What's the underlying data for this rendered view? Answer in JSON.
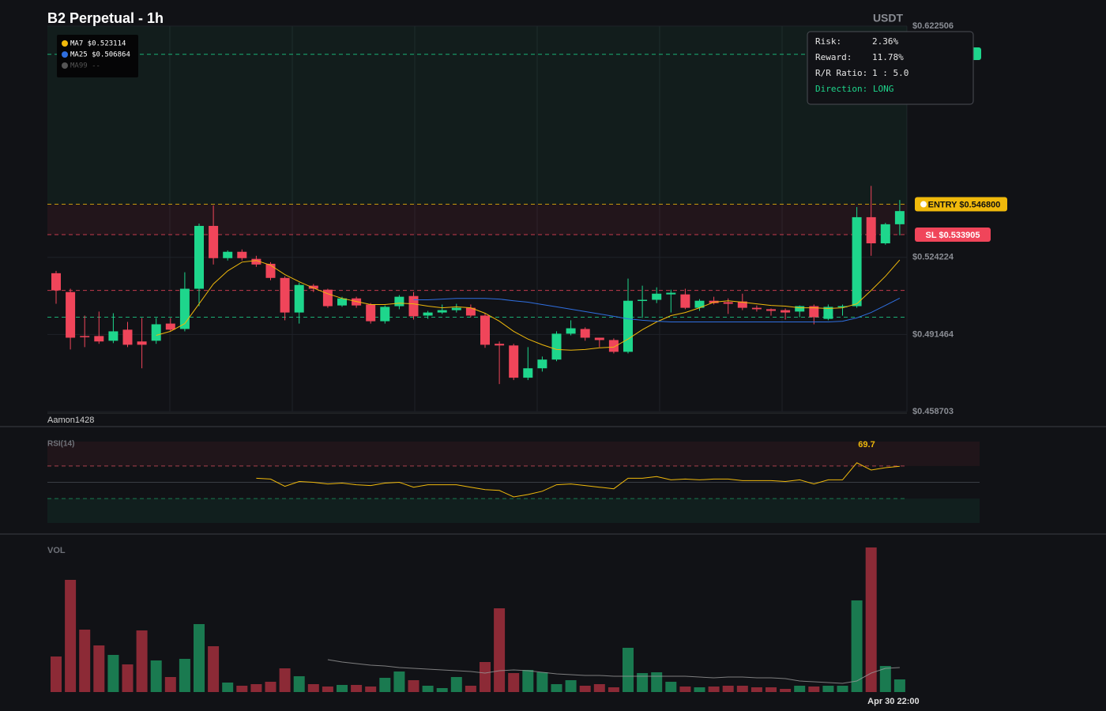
{
  "chart_data": {
    "type": "candlestick",
    "title": "B2 Perpetual - 1h",
    "currency": "USDT",
    "watermark": "Aamon1428",
    "categories": [
      null,
      null,
      null,
      null,
      null,
      null,
      null,
      null,
      null,
      null,
      null,
      null,
      null,
      null,
      null,
      null,
      null,
      null,
      null,
      null,
      null,
      null,
      null,
      null,
      null,
      null,
      null,
      null,
      null,
      null,
      null,
      null,
      null,
      null,
      null,
      null,
      null,
      null,
      null,
      null,
      null,
      null,
      null,
      null,
      null,
      null,
      null,
      null,
      null,
      null,
      null,
      null,
      null,
      null,
      null,
      null,
      null,
      null,
      null,
      "Apr 30 22:00"
    ],
    "open": [
      0.5175,
      0.5095,
      0.4908,
      0.4908,
      0.4888,
      0.4935,
      0.4885,
      0.4888,
      0.4961,
      0.4938,
      0.5109,
      0.5376,
      0.5239,
      0.5266,
      0.5236,
      0.5215,
      0.5155,
      0.5008,
      0.5122,
      0.5105,
      0.5038,
      0.5068,
      0.5042,
      0.4971,
      0.5035,
      0.5078,
      0.4995,
      0.5008,
      0.5018,
      0.5028,
      0.4995,
      0.4875,
      0.4868,
      0.4731,
      0.4771,
      0.4808,
      0.4918,
      0.4938,
      0.4901,
      0.4891,
      0.4841,
      0.5058,
      0.5062,
      0.5085,
      0.5085,
      0.5028,
      0.5058,
      0.5052,
      0.5055,
      0.5028,
      0.5022,
      0.5018,
      0.5012,
      0.5035,
      0.4981,
      0.5032,
      0.5035,
      0.5413,
      0.5302,
      0.5383
    ],
    "high": [
      0.5185,
      0.5109,
      0.4995,
      0.5012,
      0.5005,
      0.4968,
      0.4985,
      0.4985,
      0.4985,
      0.5179,
      0.5386,
      0.5463,
      0.5272,
      0.5276,
      0.5249,
      0.5222,
      0.5162,
      0.5135,
      0.5129,
      0.5109,
      0.5075,
      0.5075,
      0.5048,
      0.5038,
      0.5082,
      0.5095,
      0.5015,
      0.5042,
      0.5045,
      0.5042,
      0.5005,
      0.4885,
      0.4875,
      0.4861,
      0.4821,
      0.4928,
      0.4975,
      0.4945,
      0.4901,
      0.4898,
      0.5152,
      0.5122,
      0.5115,
      0.5105,
      0.5109,
      0.5065,
      0.5075,
      0.5068,
      0.5088,
      0.5038,
      0.5025,
      0.5025,
      0.5038,
      0.5042,
      0.5042,
      0.5042,
      0.5456,
      0.5546,
      0.5389,
      0.5486
    ],
    "low": [
      0.5045,
      0.4851,
      0.4861,
      0.4875,
      0.4878,
      0.4861,
      0.4771,
      0.4875,
      0.4928,
      0.4928,
      0.5035,
      0.5212,
      0.5229,
      0.5229,
      0.5202,
      0.5145,
      0.4975,
      0.4961,
      0.5095,
      0.5028,
      0.5032,
      0.5028,
      0.4961,
      0.4961,
      0.5022,
      0.4978,
      0.4981,
      0.5002,
      0.5008,
      0.4988,
      0.4858,
      0.4704,
      0.4721,
      0.4721,
      0.4757,
      0.4801,
      0.4911,
      0.4888,
      0.4861,
      0.4834,
      0.4834,
      0.4985,
      0.5048,
      0.5008,
      0.5022,
      0.5015,
      0.5042,
      0.5002,
      0.5018,
      0.5012,
      0.4995,
      0.4978,
      0.4988,
      0.4958,
      0.4975,
      0.4995,
      0.5028,
      0.5249,
      0.5296,
      0.5336
    ],
    "close": [
      0.5102,
      0.4901,
      0.4905,
      0.4885,
      0.4928,
      0.4871,
      0.4871,
      0.4958,
      0.4935,
      0.5109,
      0.5376,
      0.5239,
      0.5266,
      0.5239,
      0.5212,
      0.5155,
      0.5008,
      0.5125,
      0.5109,
      0.5035,
      0.5068,
      0.5038,
      0.4971,
      0.5032,
      0.5075,
      0.4992,
      0.5008,
      0.5018,
      0.5028,
      0.4995,
      0.4871,
      0.4868,
      0.4731,
      0.4771,
      0.4808,
      0.4918,
      0.4941,
      0.4901,
      0.4891,
      0.4841,
      0.5058,
      0.5062,
      0.5088,
      0.5092,
      0.5028,
      0.5058,
      0.5048,
      0.5045,
      0.5028,
      0.5022,
      0.5015,
      0.5008,
      0.5035,
      0.4988,
      0.5032,
      0.5035,
      0.5413,
      0.5302,
      0.5383,
      0.5439
    ],
    "up_color": "#1ed68c",
    "down_color": "#f0455a",
    "ylim": [
      0.458703,
      0.622506
    ],
    "yticks": [
      {
        "value": 0.458703,
        "label": "$0.458703"
      },
      {
        "value": 0.491464,
        "label": "$0.491464"
      },
      {
        "value": 0.524224,
        "label": "$0.524224"
      },
      {
        "value": 0.622506,
        "label": "$0.622506"
      }
    ],
    "ma": [
      {
        "legend_label": "MA7 $0.523114",
        "color": "#f0b90b",
        "values": [
          null,
          null,
          null,
          null,
          null,
          null,
          null,
          0.4911,
          0.4928,
          0.4961,
          0.5045,
          0.5129,
          0.5185,
          0.5222,
          0.5229,
          0.5209,
          0.5169,
          0.5139,
          0.5112,
          0.5088,
          0.5068,
          0.5055,
          0.5042,
          0.5042,
          0.5048,
          0.5045,
          0.5035,
          0.5028,
          0.5032,
          0.5028,
          0.5005,
          0.4971,
          0.4928,
          0.4895,
          0.4871,
          0.4851,
          0.4848,
          0.4851,
          0.4858,
          0.4861,
          0.4895,
          0.4935,
          0.4968,
          0.4995,
          0.5008,
          0.5028,
          0.5052,
          0.5058,
          0.5052,
          0.5045,
          0.5038,
          0.5035,
          0.5028,
          0.5028,
          0.5025,
          0.5028,
          0.5045,
          0.5102,
          0.5162,
          0.5231
        ]
      },
      {
        "legend_label": "MA25 $0.506864",
        "color": "#2f6fe0",
        "values": [
          null,
          null,
          null,
          null,
          null,
          null,
          null,
          null,
          null,
          null,
          null,
          null,
          null,
          null,
          null,
          null,
          null,
          null,
          null,
          null,
          null,
          null,
          null,
          null,
          null,
          0.5062,
          0.5062,
          0.5065,
          0.5068,
          0.5068,
          0.5068,
          0.5065,
          0.5058,
          0.5052,
          0.5042,
          0.5032,
          0.5022,
          0.5012,
          0.5002,
          0.4992,
          0.4981,
          0.4975,
          0.4971,
          0.4968,
          0.4968,
          0.4968,
          0.4968,
          0.4968,
          0.4968,
          0.4968,
          0.4968,
          0.4968,
          0.4968,
          0.4968,
          0.4968,
          0.4971,
          0.4985,
          0.5008,
          0.5038,
          0.5069
        ]
      },
      {
        "legend_label": "MA99 --",
        "color": "#555555"
      }
    ],
    "levels": [
      {
        "value": 0.6105,
        "color": "#1ed68c"
      },
      {
        "value": 0.5468,
        "color": "#f0b90b",
        "label": "ENTRY $0.546800"
      },
      {
        "value": 0.5339,
        "color": "#f0455a",
        "label": "SL $0.533905"
      },
      {
        "value": 0.5102,
        "color": "#f0455a"
      },
      {
        "value": 0.4988,
        "color": "#1ed68c"
      }
    ],
    "rsi": {
      "title": "RSI(14)",
      "color": "#f0b90b",
      "ylim": [
        0,
        100
      ],
      "levels": [
        70,
        50,
        30
      ],
      "values": [
        null,
        null,
        null,
        null,
        null,
        null,
        null,
        null,
        null,
        null,
        null,
        null,
        null,
        null,
        55,
        54,
        45,
        51,
        50,
        48,
        49,
        47,
        46,
        49,
        50,
        44,
        47,
        47,
        47,
        44,
        41,
        40,
        32,
        35,
        39,
        47,
        48,
        46,
        44,
        42,
        55,
        55,
        57,
        53,
        54,
        53,
        54,
        54,
        52,
        52,
        52,
        51,
        53,
        48,
        53,
        53,
        74,
        65,
        68,
        69.7
      ]
    },
    "volume": {
      "title": "VOL",
      "up_color": "#1a7a50",
      "down_color": "#8c2a36",
      "values": [
        45,
        142,
        79,
        59,
        47,
        35,
        78,
        40,
        19,
        42,
        86,
        58,
        12,
        8,
        10,
        13,
        30,
        20,
        10,
        7,
        9,
        9,
        7,
        18,
        26,
        15,
        8,
        5,
        19,
        8,
        38,
        106,
        24,
        28,
        25,
        10,
        15,
        8,
        10,
        6,
        56,
        24,
        25,
        13,
        7,
        6,
        7,
        8,
        8,
        6,
        6,
        4,
        8,
        7,
        8,
        8,
        116,
        183,
        33,
        16
      ],
      "ma_color": "#9a9a9a",
      "ma_values": [
        null,
        null,
        null,
        null,
        null,
        null,
        null,
        null,
        null,
        null,
        null,
        null,
        null,
        null,
        null,
        null,
        null,
        null,
        null,
        41,
        38,
        36,
        34,
        33,
        31,
        30,
        29,
        28,
        27,
        26,
        24,
        27,
        28,
        27,
        25,
        23,
        22,
        21,
        21,
        20,
        20,
        20,
        20,
        20,
        20,
        19,
        18,
        19,
        19,
        18,
        18,
        17,
        14,
        13,
        12,
        11,
        14,
        24,
        30,
        31
      ]
    }
  },
  "risk_panel": {
    "risk_label": "Risk:",
    "risk": "2.36%",
    "reward_label": "Reward:",
    "reward": "11.78%",
    "ratio_label": "R/R Ratio:",
    "ratio": "1 : 5.0",
    "direction": "Direction: LONG"
  }
}
